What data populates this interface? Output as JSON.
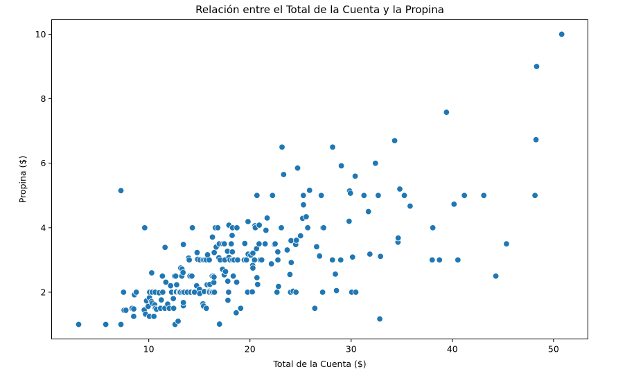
{
  "chart_data": {
    "type": "scatter",
    "title": "Relación entre el Total de la Cuenta y la Propina",
    "xlabel": "Total de la Cuenta ($)",
    "ylabel": "Propina ($)",
    "xlim": [
      0.4,
      53.4
    ],
    "ylim": [
      0.55,
      10.45
    ],
    "xticks": [
      10,
      20,
      30,
      40,
      50
    ],
    "yticks": [
      2,
      4,
      6,
      8,
      10
    ],
    "grid": false,
    "color": "#1f77b4",
    "points": [
      [
        3.07,
        1.0
      ],
      [
        5.75,
        1.0
      ],
      [
        7.25,
        1.0
      ],
      [
        7.25,
        5.15
      ],
      [
        7.51,
        2.0
      ],
      [
        7.56,
        1.44
      ],
      [
        7.74,
        1.44
      ],
      [
        8.35,
        1.5
      ],
      [
        8.51,
        1.25
      ],
      [
        8.52,
        1.48
      ],
      [
        8.58,
        1.92
      ],
      [
        8.77,
        2.0
      ],
      [
        9.55,
        1.45
      ],
      [
        9.6,
        4.0
      ],
      [
        9.68,
        1.32
      ],
      [
        9.78,
        1.73
      ],
      [
        9.94,
        1.56
      ],
      [
        10.07,
        1.25
      ],
      [
        10.07,
        1.83
      ],
      [
        10.09,
        2.0
      ],
      [
        10.27,
        1.71
      ],
      [
        10.29,
        2.6
      ],
      [
        10.33,
        2.0
      ],
      [
        10.34,
        1.66
      ],
      [
        10.34,
        2.0
      ],
      [
        10.51,
        1.25
      ],
      [
        10.59,
        1.61
      ],
      [
        10.63,
        2.0
      ],
      [
        10.65,
        1.5
      ],
      [
        10.77,
        1.47
      ],
      [
        11.02,
        1.98
      ],
      [
        11.17,
        1.5
      ],
      [
        11.24,
        1.76
      ],
      [
        11.35,
        2.5
      ],
      [
        11.38,
        2.0
      ],
      [
        11.59,
        1.5
      ],
      [
        11.61,
        3.39
      ],
      [
        11.69,
        2.31
      ],
      [
        11.87,
        1.63
      ],
      [
        12.03,
        1.5
      ],
      [
        12.16,
        2.2
      ],
      [
        12.26,
        2.0
      ],
      [
        12.43,
        1.8
      ],
      [
        12.46,
        1.5
      ],
      [
        12.54,
        2.5
      ],
      [
        12.6,
        1.0
      ],
      [
        12.66,
        2.5
      ],
      [
        12.69,
        2.0
      ],
      [
        12.74,
        2.01
      ],
      [
        12.76,
        2.23
      ],
      [
        12.9,
        1.1
      ],
      [
        13.0,
        2.0
      ],
      [
        13.03,
        2.0
      ],
      [
        13.13,
        2.0
      ],
      [
        13.16,
        2.75
      ],
      [
        13.27,
        2.5
      ],
      [
        13.28,
        2.72
      ],
      [
        13.37,
        2.0
      ],
      [
        13.39,
        2.61
      ],
      [
        13.42,
        1.58
      ],
      [
        13.42,
        1.68
      ],
      [
        13.42,
        3.48
      ],
      [
        13.51,
        2.0
      ],
      [
        13.81,
        2.0
      ],
      [
        13.94,
        3.06
      ],
      [
        14.0,
        3.0
      ],
      [
        14.07,
        2.5
      ],
      [
        14.15,
        2.0
      ],
      [
        14.26,
        2.5
      ],
      [
        14.31,
        4.0
      ],
      [
        14.48,
        2.0
      ],
      [
        14.52,
        2.0
      ],
      [
        14.73,
        2.2
      ],
      [
        14.78,
        3.23
      ],
      [
        14.83,
        3.02
      ],
      [
        15.01,
        2.09
      ],
      [
        15.04,
        1.96
      ],
      [
        15.06,
        3.0
      ],
      [
        15.36,
        1.64
      ],
      [
        15.38,
        3.0
      ],
      [
        15.42,
        1.57
      ],
      [
        15.48,
        2.02
      ],
      [
        15.53,
        3.0
      ],
      [
        15.69,
        1.5
      ],
      [
        15.69,
        3.0
      ],
      [
        15.77,
        2.23
      ],
      [
        15.81,
        3.16
      ],
      [
        15.95,
        2.0
      ],
      [
        15.98,
        2.03
      ],
      [
        15.98,
        3.0
      ],
      [
        16.0,
        2.0
      ],
      [
        16.04,
        2.24
      ],
      [
        16.21,
        2.0
      ],
      [
        16.27,
        2.5
      ],
      [
        16.29,
        3.71
      ],
      [
        16.31,
        2.0
      ],
      [
        16.4,
        2.5
      ],
      [
        16.43,
        2.3
      ],
      [
        16.45,
        2.47
      ],
      [
        16.47,
        3.23
      ],
      [
        16.49,
        2.0
      ],
      [
        16.58,
        4.0
      ],
      [
        16.66,
        3.4
      ],
      [
        16.82,
        4.0
      ],
      [
        16.93,
        3.07
      ],
      [
        16.97,
        3.5
      ],
      [
        16.99,
        1.01
      ],
      [
        17.07,
        3.0
      ],
      [
        17.29,
        2.71
      ],
      [
        17.31,
        3.5
      ],
      [
        17.46,
        2.54
      ],
      [
        17.47,
        3.5
      ],
      [
        17.51,
        3.0
      ],
      [
        17.59,
        2.64
      ],
      [
        17.78,
        3.27
      ],
      [
        17.81,
        2.34
      ],
      [
        17.82,
        1.75
      ],
      [
        17.89,
        2.0
      ],
      [
        17.92,
        3.08
      ],
      [
        17.92,
        4.08
      ],
      [
        18.04,
        3.0
      ],
      [
        18.15,
        3.5
      ],
      [
        18.24,
        3.76
      ],
      [
        18.26,
        3.25
      ],
      [
        18.28,
        4.0
      ],
      [
        18.29,
        3.0
      ],
      [
        18.35,
        2.5
      ],
      [
        18.43,
        3.0
      ],
      [
        18.64,
        1.36
      ],
      [
        18.69,
        2.31
      ],
      [
        18.71,
        4.0
      ],
      [
        18.78,
        3.0
      ],
      [
        19.08,
        1.5
      ],
      [
        19.44,
        3.0
      ],
      [
        19.49,
        3.51
      ],
      [
        19.65,
        3.0
      ],
      [
        19.77,
        2.0
      ],
      [
        19.81,
        4.19
      ],
      [
        19.82,
        3.18
      ],
      [
        20.08,
        3.15
      ],
      [
        20.23,
        2.01
      ],
      [
        20.27,
        2.83
      ],
      [
        20.29,
        2.75
      ],
      [
        20.29,
        3.21
      ],
      [
        20.45,
        3.0
      ],
      [
        20.49,
        4.06
      ],
      [
        20.53,
        4.0
      ],
      [
        20.65,
        3.35
      ],
      [
        20.69,
        2.45
      ],
      [
        20.69,
        5.0
      ],
      [
        20.76,
        2.24
      ],
      [
        20.9,
        3.5
      ],
      [
        20.92,
        4.08
      ],
      [
        21.01,
        3.0
      ],
      [
        21.16,
        3.0
      ],
      [
        21.5,
        3.5
      ],
      [
        21.58,
        3.92
      ],
      [
        21.7,
        4.3
      ],
      [
        22.12,
        2.88
      ],
      [
        22.23,
        5.0
      ],
      [
        22.42,
        3.48
      ],
      [
        22.49,
        3.5
      ],
      [
        22.67,
        2.0
      ],
      [
        22.75,
        3.25
      ],
      [
        22.76,
        3.0
      ],
      [
        22.82,
        2.18
      ],
      [
        23.1,
        4.0
      ],
      [
        23.17,
        6.5
      ],
      [
        23.33,
        5.65
      ],
      [
        23.68,
        3.31
      ],
      [
        23.95,
        2.55
      ],
      [
        24.01,
        2.0
      ],
      [
        24.06,
        3.6
      ],
      [
        24.08,
        2.92
      ],
      [
        24.27,
        2.03
      ],
      [
        24.52,
        3.48
      ],
      [
        24.55,
        2.0
      ],
      [
        24.59,
        3.61
      ],
      [
        24.71,
        5.85
      ],
      [
        25.0,
        3.75
      ],
      [
        25.21,
        4.29
      ],
      [
        25.28,
        5.0
      ],
      [
        25.29,
        4.71
      ],
      [
        25.56,
        4.34
      ],
      [
        25.71,
        4.0
      ],
      [
        25.89,
        5.16
      ],
      [
        26.41,
        1.5
      ],
      [
        26.59,
        3.41
      ],
      [
        26.86,
        3.14
      ],
      [
        26.88,
        3.12
      ],
      [
        27.05,
        5.0
      ],
      [
        27.18,
        2.0
      ],
      [
        27.2,
        4.0
      ],
      [
        27.28,
        4.0
      ],
      [
        28.15,
        3.0
      ],
      [
        28.17,
        6.5
      ],
      [
        28.44,
        2.56
      ],
      [
        28.55,
        2.05
      ],
      [
        28.97,
        3.0
      ],
      [
        29.03,
        5.92
      ],
      [
        29.8,
        4.2
      ],
      [
        29.85,
        5.14
      ],
      [
        29.93,
        5.07
      ],
      [
        30.06,
        2.0
      ],
      [
        30.14,
        3.09
      ],
      [
        30.4,
        5.6
      ],
      [
        30.46,
        2.0
      ],
      [
        31.27,
        5.0
      ],
      [
        31.71,
        4.5
      ],
      [
        31.85,
        3.18
      ],
      [
        32.4,
        6.0
      ],
      [
        32.68,
        5.0
      ],
      [
        32.83,
        1.17
      ],
      [
        32.9,
        3.11
      ],
      [
        34.3,
        6.7
      ],
      [
        34.63,
        3.55
      ],
      [
        34.65,
        3.68
      ],
      [
        34.81,
        5.2
      ],
      [
        35.26,
        5.0
      ],
      [
        35.83,
        4.67
      ],
      [
        38.01,
        3.0
      ],
      [
        38.07,
        4.0
      ],
      [
        38.73,
        3.0
      ],
      [
        39.42,
        7.58
      ],
      [
        40.17,
        4.73
      ],
      [
        40.55,
        3.0
      ],
      [
        41.19,
        5.0
      ],
      [
        43.11,
        5.0
      ],
      [
        44.3,
        2.5
      ],
      [
        45.35,
        3.5
      ],
      [
        48.17,
        5.0
      ],
      [
        48.27,
        6.73
      ],
      [
        48.33,
        9.0
      ],
      [
        50.81,
        10.0
      ]
    ]
  }
}
